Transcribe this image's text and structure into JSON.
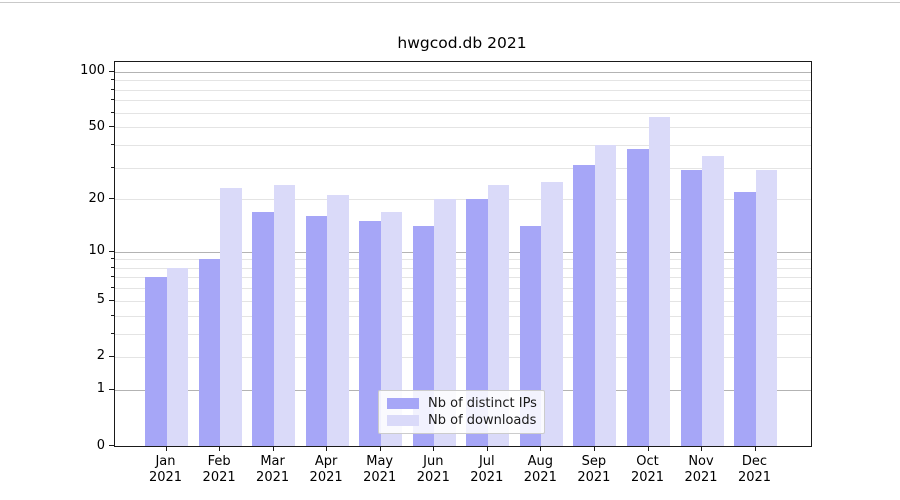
{
  "title": "hwgcod.db 2021",
  "colors": {
    "distinct_ips_bar": "#a6a6f7",
    "downloads_bar": "#dadaf9",
    "grid_major": "#b3b3b3",
    "grid_minor": "#e4e4e4",
    "axis_spine": "#1a1a1a"
  },
  "chart_data": {
    "type": "bar",
    "title": "hwgcod.db 2021",
    "categories": [
      "Jan",
      "Feb",
      "Mar",
      "Apr",
      "May",
      "Jun",
      "Jul",
      "Aug",
      "Sep",
      "Oct",
      "Nov",
      "Dec"
    ],
    "x_label_second_line": "2021",
    "series": [
      {
        "name": "Nb of distinct IPs",
        "color": "#a6a6f7",
        "values": [
          7,
          9,
          17,
          16,
          15,
          14,
          20,
          14,
          31,
          38,
          29,
          22
        ]
      },
      {
        "name": "Nb of downloads",
        "color": "#dadaf9",
        "values": [
          8,
          23,
          24,
          21,
          17,
          20,
          24,
          25,
          40,
          57,
          35,
          29
        ]
      }
    ],
    "y_scale": "log10(1+v)",
    "y_tick_values": [
      0,
      1,
      2,
      5,
      10,
      20,
      50,
      100
    ],
    "y_major_grid_values": [
      1,
      10,
      100
    ],
    "y_minor_grid_values": [
      2,
      3,
      4,
      5,
      6,
      7,
      8,
      9,
      20,
      30,
      40,
      50,
      60,
      70,
      80,
      90
    ],
    "ylim": [
      0,
      113
    ],
    "grid": true,
    "legend_position": "lower center",
    "xlabel": "",
    "ylabel": ""
  }
}
